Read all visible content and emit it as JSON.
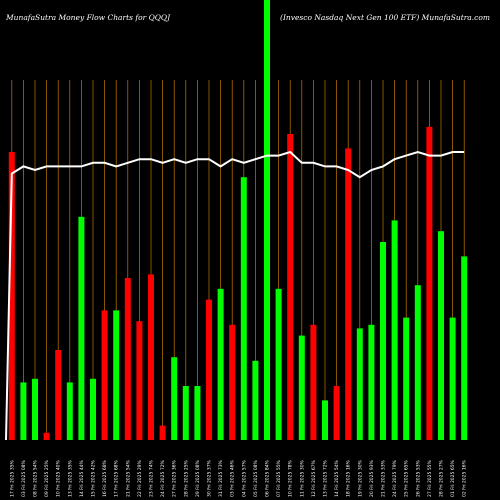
{
  "header": {
    "left": "MunafaSutra  Money Flow  Charts for QQQJ",
    "right": "(Invesco  Nasdaq Next Gen  100  ETF) MunafaSutra.com"
  },
  "colors": {
    "background": "#000000",
    "up": "#00ff00",
    "down": "#ff0000",
    "grid": "#c27a00",
    "line": "#ffffff"
  },
  "chart_data": {
    "type": "bar",
    "title": "MunafaSutra  Money Flow  Charts for QQQJ",
    "subtitle": "(Invesco  Nasdaq Next Gen  100  ETF) MunafaSutra.com",
    "categories": [
      "17 Fri 2025 35%",
      "03 Fri 2025 08%",
      "08 Fri 2025 54%",
      "09 Fri 2025 25%",
      "10 Fri 2025 40%",
      "13 Fri 2025 35%",
      "14 Fri 2025 44%",
      "15 Fri 2025 42%",
      "16 Fri 2025 68%",
      "17 Fri 2025 68%",
      "21 Fri 2025 54%",
      "22 Fri 2025 29%",
      "23 Fri 2025 74%",
      "24 Fri 2025 72%",
      "27 Fri 2025 36%",
      "28 Fri 2025 25%",
      "29 Fri 2025 08%",
      "30 Fri 2025 37%",
      "31 Fri 2025 73%",
      "03 Fri 2025 46%",
      "04 Fri 2025 57%",
      "05 Fri 2025 08%",
      "06 Fri 2025 84%",
      "07 Fri 2025 55%",
      "10 Fri 2025 78%",
      "11 Fri 2025 30%",
      "12 Fri 2025 67%",
      "13 Fri 2025 72%",
      "14 Fri 2025 54%",
      "18 Fri 2025 16%",
      "19 Fri 2025 30%",
      "20 Fri 2025 93%",
      "21 Fri 2025 33%",
      "24 Fri 2025 79%",
      "25 Fri 2025 65%",
      "26 Fri 2025 53%",
      "27 Fri 2025 55%",
      "28 Fri 2025 27%",
      "01 Fri 2025 65%",
      "02 Fri 2025 16%"
    ],
    "bar_heights": [
      80,
      16,
      17,
      2,
      25,
      16,
      62,
      17,
      36,
      36,
      45,
      33,
      46,
      4,
      23,
      15,
      15,
      39,
      42,
      32,
      73,
      22,
      100,
      42,
      85,
      29,
      32,
      11,
      15,
      81,
      31,
      32,
      55,
      61,
      34,
      43,
      87,
      58,
      34,
      51
    ],
    "bar_colors": [
      "red",
      "green",
      "green",
      "red",
      "red",
      "green",
      "green",
      "green",
      "red",
      "green",
      "red",
      "red",
      "red",
      "red",
      "green",
      "green",
      "green",
      "red",
      "green",
      "red",
      "green",
      "green",
      "green",
      "green",
      "red",
      "green",
      "red",
      "green",
      "red",
      "red",
      "green",
      "green",
      "green",
      "green",
      "green",
      "green",
      "red",
      "green",
      "green",
      "green"
    ],
    "line_values": [
      74,
      76,
      75,
      76,
      76,
      76,
      76,
      77,
      77,
      76,
      77,
      78,
      78,
      77,
      78,
      77,
      78,
      78,
      76,
      78,
      77,
      78,
      79,
      79,
      80,
      77,
      77,
      76,
      76,
      75,
      73,
      75,
      76,
      78,
      79,
      80,
      79,
      79,
      80,
      80
    ],
    "ylim": [
      0,
      100
    ],
    "grid": "vertical",
    "xlabel": "",
    "ylabel": ""
  }
}
